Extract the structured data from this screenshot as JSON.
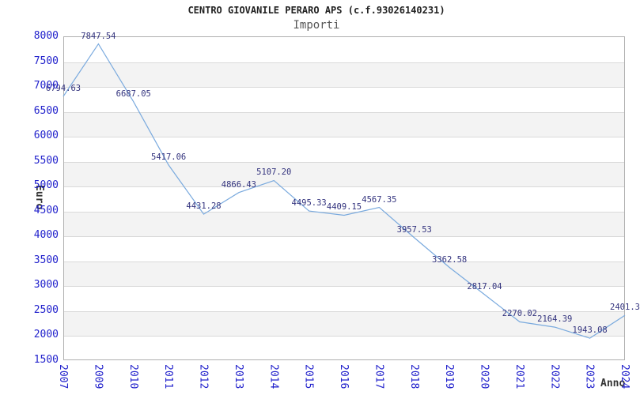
{
  "title": "CENTRO GIOVANILE PERARO APS (c.f.93026140231)",
  "subtitle": "Importi",
  "chart_data": {
    "type": "line",
    "title": "CENTRO GIOVANILE PERARO APS (c.f.93026140231)",
    "subtitle": "Importi",
    "xlabel": "Anno",
    "ylabel": "Euro",
    "x_categories": [
      "2007",
      "2009",
      "2010",
      "2011",
      "2012",
      "2013",
      "2014",
      "2015",
      "2016",
      "2017",
      "2018",
      "2019",
      "2020",
      "2021",
      "2022",
      "2023",
      "2024"
    ],
    "series": [
      {
        "name": "Importi",
        "values": [
          6794.63,
          7847.54,
          6687.05,
          5417.06,
          4431.28,
          4866.43,
          5107.2,
          4495.33,
          4409.15,
          4567.35,
          3957.53,
          3362.58,
          2817.04,
          2270.02,
          2164.39,
          1943.08,
          2401.3
        ]
      }
    ],
    "point_labels": [
      "6794.63",
      "7847.54",
      "6687.05",
      "5417.06",
      "4431.28",
      "4866.43",
      "5107.20",
      "4495.33",
      "4409.15",
      "4567.35",
      "3957.53",
      "3362.58",
      "2817.04",
      "2270.02",
      "2164.39",
      "1943.08",
      "2401.3"
    ],
    "ylim": [
      1500,
      8000
    ],
    "ytick_step": 500,
    "ytick_labels": [
      "8000",
      "7500",
      "7000",
      "6500",
      "6000",
      "5500",
      "5000",
      "4500",
      "4000",
      "3500",
      "3000",
      "2500",
      "2000",
      "1500"
    ],
    "grid": "horizontal-with-alternating-bands",
    "legend": "none"
  },
  "colors": {
    "tick_label": "#2222cc",
    "point_label": "#32327d",
    "line": "#7aaade",
    "band": "#f3f3f3",
    "gridline": "#d9d9d9",
    "plot_border": "#b0b0b0",
    "title": "#222222",
    "subtitle": "#555555",
    "axis_title": "#333333"
  }
}
